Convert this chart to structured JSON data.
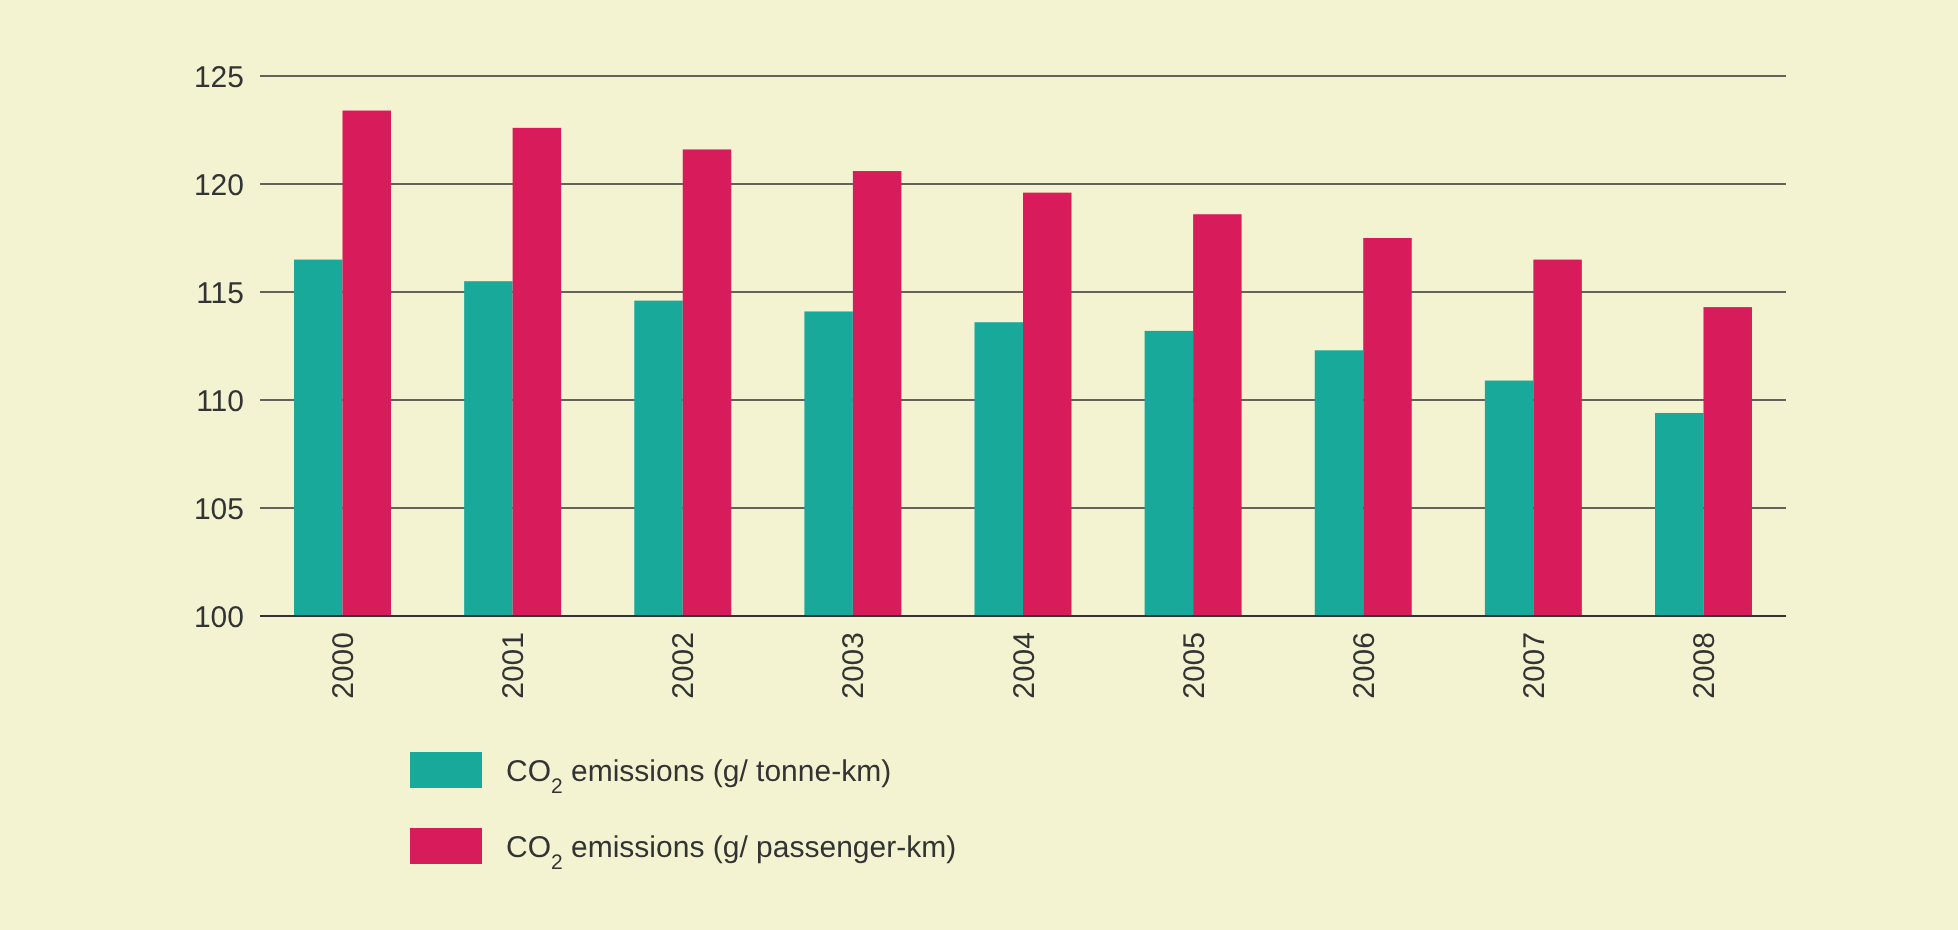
{
  "chart_data": {
    "type": "bar",
    "categories": [
      "2000",
      "2001",
      "2002",
      "2003",
      "2004",
      "2005",
      "2006",
      "2007",
      "2008"
    ],
    "series": [
      {
        "name": "CO$_{2}$ emissions (g/ tonne-km)",
        "color": "#19a99a",
        "values": [
          116.5,
          115.5,
          114.6,
          114.1,
          113.6,
          113.2,
          112.3,
          110.9,
          109.4
        ]
      },
      {
        "name": "CO$_{2}$ emissions (g/ passenger-km)",
        "color": "#d81b5b",
        "values": [
          123.4,
          122.6,
          121.6,
          120.6,
          119.6,
          118.6,
          117.5,
          116.5,
          114.3
        ]
      }
    ],
    "ylim": [
      100,
      125
    ],
    "yticks": [
      100,
      105,
      110,
      115,
      120,
      125
    ],
    "grid": "y",
    "legend": "bottom"
  }
}
